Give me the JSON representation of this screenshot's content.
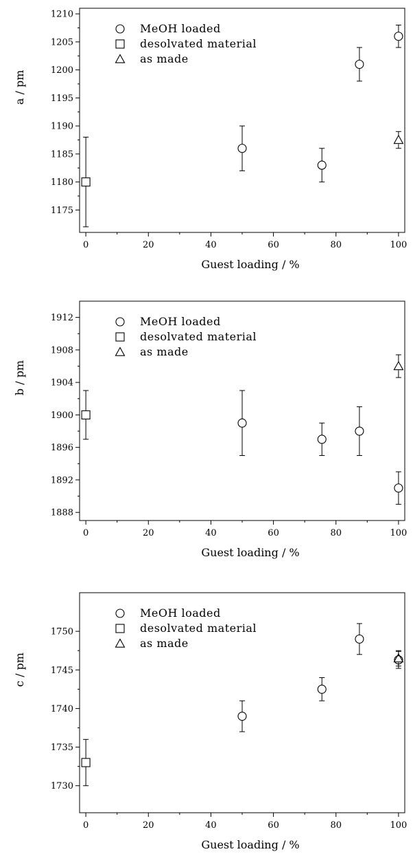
{
  "chart_data": [
    {
      "type": "scatter",
      "xlabel": "Guest loading / %",
      "ylabel": "a / pm",
      "xlim": [
        -2,
        102
      ],
      "ylim": [
        1171,
        1211
      ],
      "xticks": [
        0,
        20,
        40,
        60,
        80,
        100
      ],
      "yticks": [
        1175,
        1180,
        1185,
        1190,
        1195,
        1200,
        1205,
        1210
      ],
      "legend": {
        "placement": "top-left"
      },
      "series": [
        {
          "name": "MeOH loaded",
          "marker": "circle",
          "points": [
            {
              "x": 50,
              "y": 1186,
              "err_low": 1182,
              "err_high": 1190
            },
            {
              "x": 75.5,
              "y": 1183,
              "err_low": 1180,
              "err_high": 1186
            },
            {
              "x": 87.5,
              "y": 1201,
              "err_low": 1198,
              "err_high": 1204
            },
            {
              "x": 100,
              "y": 1206,
              "err_low": 1204,
              "err_high": 1208
            }
          ]
        },
        {
          "name": "desolvated material",
          "marker": "square",
          "points": [
            {
              "x": 0,
              "y": 1180,
              "err_low": 1172,
              "err_high": 1188
            }
          ]
        },
        {
          "name": "as made",
          "marker": "triangle",
          "points": [
            {
              "x": 100,
              "y": 1187.5,
              "err_low": 1186,
              "err_high": 1189
            }
          ]
        }
      ]
    },
    {
      "type": "scatter",
      "xlabel": "Guest loading / %",
      "ylabel": "b / pm",
      "xlim": [
        -2,
        102
      ],
      "ylim": [
        1887,
        1914
      ],
      "xticks": [
        0,
        20,
        40,
        60,
        80,
        100
      ],
      "yticks": [
        1888,
        1892,
        1896,
        1900,
        1904,
        1908,
        1912
      ],
      "legend": {
        "placement": "top-left"
      },
      "series": [
        {
          "name": "MeOH loaded",
          "marker": "circle",
          "points": [
            {
              "x": 50,
              "y": 1899,
              "err_low": 1895,
              "err_high": 1903
            },
            {
              "x": 75.5,
              "y": 1897,
              "err_low": 1895,
              "err_high": 1899
            },
            {
              "x": 87.5,
              "y": 1898,
              "err_low": 1895,
              "err_high": 1901
            },
            {
              "x": 100,
              "y": 1891,
              "err_low": 1889,
              "err_high": 1893
            }
          ]
        },
        {
          "name": "desolvated material",
          "marker": "square",
          "points": [
            {
              "x": 0,
              "y": 1900,
              "err_low": 1897,
              "err_high": 1903
            }
          ]
        },
        {
          "name": "as made",
          "marker": "triangle",
          "points": [
            {
              "x": 100,
              "y": 1906,
              "err_low": 1904.6,
              "err_high": 1907.4
            }
          ]
        }
      ]
    },
    {
      "type": "scatter",
      "xlabel": "Guest loading / %",
      "ylabel": "c / pm",
      "xlim": [
        -2,
        102
      ],
      "ylim": [
        1726.5,
        1755
      ],
      "xticks": [
        0,
        20,
        40,
        60,
        80,
        100
      ],
      "yticks": [
        1730,
        1735,
        1740,
        1745,
        1750
      ],
      "legend": {
        "placement": "top-left"
      },
      "series": [
        {
          "name": "MeOH loaded",
          "marker": "circle",
          "points": [
            {
              "x": 50,
              "y": 1739,
              "err_low": 1737,
              "err_high": 1741
            },
            {
              "x": 75.5,
              "y": 1742.5,
              "err_low": 1741,
              "err_high": 1744
            },
            {
              "x": 87.5,
              "y": 1749,
              "err_low": 1747,
              "err_high": 1751
            },
            {
              "x": 100,
              "y": 1746.3,
              "err_low": 1745.2,
              "err_high": 1747.4
            }
          ]
        },
        {
          "name": "desolvated material",
          "marker": "square",
          "points": [
            {
              "x": 0,
              "y": 1733,
              "err_low": 1730,
              "err_high": 1736
            }
          ]
        },
        {
          "name": "as made",
          "marker": "triangle",
          "points": [
            {
              "x": 100,
              "y": 1746.5,
              "err_low": 1745.5,
              "err_high": 1747.5
            }
          ]
        }
      ]
    }
  ]
}
